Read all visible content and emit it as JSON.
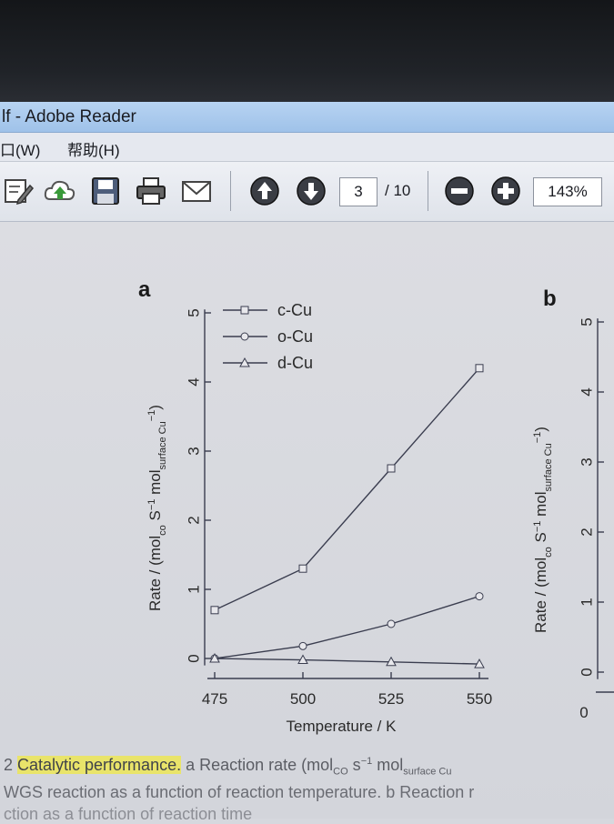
{
  "window": {
    "title": "lf - Adobe Reader",
    "menu": [
      "口(W)",
      "帮助(H)"
    ]
  },
  "toolbar": {
    "page_current": "3",
    "page_total": "/ 10",
    "zoom": "143%",
    "icons": [
      "edit-icon",
      "cloud-upload-icon",
      "save-icon",
      "print-icon",
      "email-icon",
      "previous-page-icon",
      "next-page-icon",
      "zoom-out-icon",
      "zoom-in-icon"
    ]
  },
  "chart_data": [
    {
      "panel_label": "a",
      "type": "line",
      "xlabel": "Temperature / K",
      "ylabel": "Rate / (mol",
      "ylabel_sub1": "co",
      "ylabel_mid": " S",
      "ylabel_sup": "−1",
      "ylabel_mid2": " mol",
      "ylabel_sub2": "surface Cu",
      "ylabel_sup2": "−1",
      "ylabel_end": ")",
      "x": [
        475,
        500,
        525,
        550
      ],
      "x_ticks": [
        "475",
        "500",
        "525",
        "550"
      ],
      "y_ticks": [
        "0",
        "1",
        "2",
        "3",
        "4",
        "5"
      ],
      "ylim": [
        -0.1,
        5.05
      ],
      "legend_position": "top-left",
      "series": [
        {
          "name": "c-Cu",
          "marker": "square",
          "values": [
            0.7,
            1.3,
            2.75,
            4.2
          ]
        },
        {
          "name": "o-Cu",
          "marker": "circle",
          "values": [
            0.0,
            0.18,
            0.5,
            0.9
          ]
        },
        {
          "name": "d-Cu",
          "marker": "triangle",
          "values": [
            0.0,
            -0.02,
            -0.05,
            -0.08
          ]
        }
      ]
    },
    {
      "panel_label": "b",
      "type": "line",
      "ylabel": "Rate / (mol",
      "ylabel_sub1": "co",
      "ylabel_mid": " S",
      "ylabel_sup": "−1",
      "ylabel_mid2": " mol",
      "ylabel_sub2": "surface Cu",
      "ylabel_sup2": "−1",
      "ylabel_end": ")",
      "y_ticks": [
        "0",
        "1",
        "2",
        "3",
        "4",
        "5"
      ],
      "x_ticks": [
        "0"
      ],
      "ylim": [
        -0.1,
        5.05
      ]
    }
  ],
  "caption": {
    "line1_prefix": "2 ",
    "line1_highlight": "Catalytic performance.",
    "line1_rest": " a Reaction rate (mol",
    "line1_sub": "CO",
    "line1_mid": " s",
    "line1_sup": "−1",
    "line1_mid2": " mol",
    "line1_sub2": "surface Cu",
    "line2": "WGS reaction as a function of reaction temperature. b Reaction r",
    "line3": "ction as a function of reaction time"
  }
}
